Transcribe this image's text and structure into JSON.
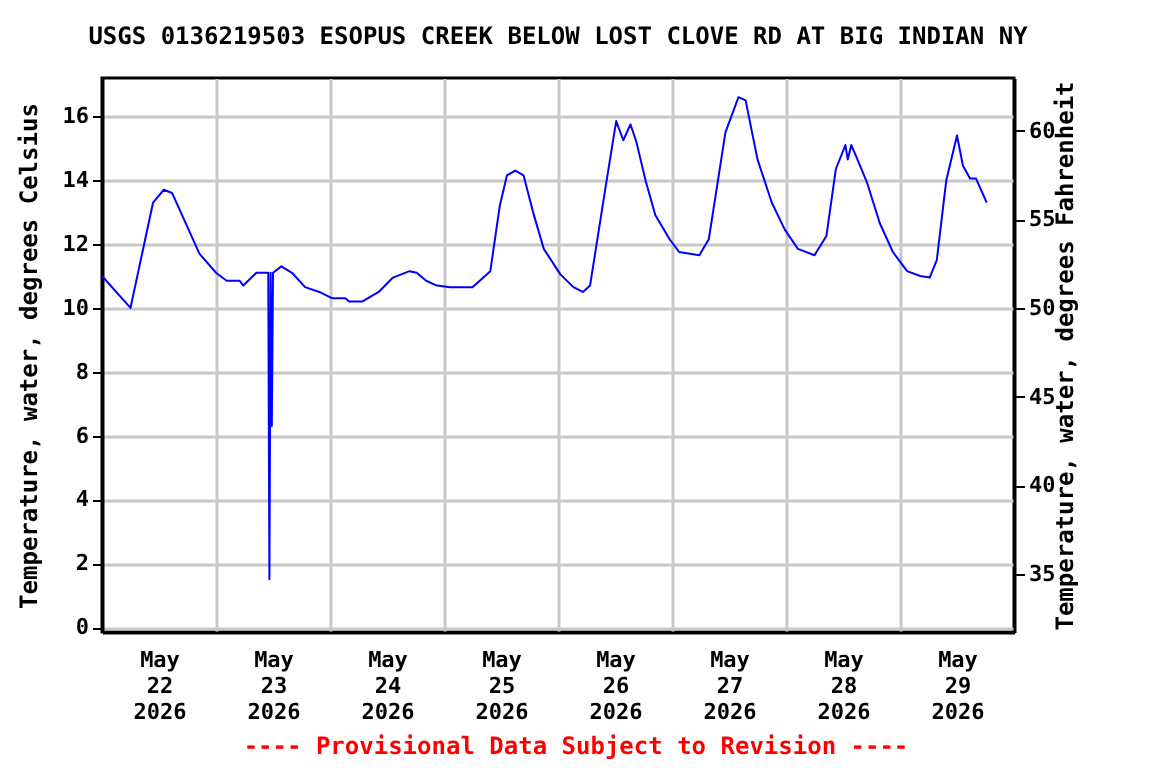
{
  "chart_data": {
    "type": "line",
    "title": "USGS 0136219503 ESOPUS CREEK BELOW LOST CLOVE RD AT BIG INDIAN NY",
    "ylabel": "Temperature, water, degrees Celsius",
    "y2label": "Temperature, water, degrees Fahrenheit",
    "annotations": [
      "---- Provisional Data Subject to Revision ----"
    ],
    "xlim": [
      "2026-05-22T00:00",
      "2026-05-30T00:00"
    ],
    "xticks": [
      {
        "value": "2026-05-22T12:00",
        "label": "May 22 2026"
      },
      {
        "value": "2026-05-23T00:00",
        "label": null
      },
      {
        "value": "2026-05-23T12:00",
        "label": "May 23 2026"
      },
      {
        "value": "2026-05-24T00:00",
        "label": null
      },
      {
        "value": "2026-05-24T12:00",
        "label": "May 24 2026"
      },
      {
        "value": "2026-05-25T00:00",
        "label": null
      },
      {
        "value": "2026-05-25T12:00",
        "label": "May 25 2026"
      },
      {
        "value": "2026-05-26T00:00",
        "label": null
      },
      {
        "value": "2026-05-26T12:00",
        "label": "May 26 2026"
      },
      {
        "value": "2026-05-27T00:00",
        "label": null
      },
      {
        "value": "2026-05-27T12:00",
        "label": "May 27 2026"
      },
      {
        "value": "2026-05-28T00:00",
        "label": null
      },
      {
        "value": "2026-05-28T12:00",
        "label": "May 28 2026"
      },
      {
        "value": "2026-05-29T00:00",
        "label": null
      },
      {
        "value": "2026-05-29T12:00",
        "label": "May 29 2026"
      }
    ],
    "ylim": [
      -0.15,
      17.2
    ],
    "yticks": [
      0,
      2,
      4,
      6,
      8,
      10,
      12,
      14,
      16
    ],
    "y2lim": [
      31.73,
      62.96
    ],
    "y2ticks": [
      35,
      40,
      45,
      50,
      55,
      60
    ],
    "grid": true,
    "series": [
      {
        "color": "#0000ff",
        "x": [
          "2026-05-22T00:00",
          "2026-05-22T06:00",
          "2026-05-22T10:45",
          "2026-05-22T13:00",
          "2026-05-22T14:45",
          "2026-05-22T20:30",
          "2026-05-23T00:00",
          "2026-05-23T02:15",
          "2026-05-23T05:00",
          "2026-05-23T05:45",
          "2026-05-23T08:30",
          "2026-05-23T11:00",
          "2026-05-23T11:15",
          "2026-05-23T11:30",
          "2026-05-23T11:45",
          "2026-05-23T12:00",
          "2026-05-23T13:45",
          "2026-05-23T16:00",
          "2026-05-23T18:45",
          "2026-05-23T21:45",
          "2026-05-24T00:30",
          "2026-05-24T03:15",
          "2026-05-24T04:00",
          "2026-05-24T06:45",
          "2026-05-24T10:15",
          "2026-05-24T13:15",
          "2026-05-24T16:45",
          "2026-05-24T18:15",
          "2026-05-24T20:15",
          "2026-05-24T22:30",
          "2026-05-25T01:15",
          "2026-05-25T06:00",
          "2026-05-25T09:45",
          "2026-05-25T11:45",
          "2026-05-25T13:15",
          "2026-05-25T15:00",
          "2026-05-25T16:45",
          "2026-05-25T18:45",
          "2026-05-25T21:00",
          "2026-05-26T00:30",
          "2026-05-26T03:15",
          "2026-05-26T05:15",
          "2026-05-26T06:45",
          "2026-05-26T10:15",
          "2026-05-26T12:15",
          "2026-05-26T13:45",
          "2026-05-26T15:15",
          "2026-05-26T16:30",
          "2026-05-26T18:30",
          "2026-05-26T20:30",
          "2026-05-26T23:30",
          "2026-05-27T01:30",
          "2026-05-27T05:45",
          "2026-05-27T07:45",
          "2026-05-27T11:15",
          "2026-05-27T14:00",
          "2026-05-27T15:30",
          "2026-05-27T18:00",
          "2026-05-27T21:00",
          "2026-05-27T23:45",
          "2026-05-28T02:30",
          "2026-05-28T06:00",
          "2026-05-28T08:30",
          "2026-05-28T10:30",
          "2026-05-28T12:30",
          "2026-05-28T13:00",
          "2026-05-28T13:45",
          "2026-05-28T14:45",
          "2026-05-28T17:00",
          "2026-05-28T19:45",
          "2026-05-28T22:30",
          "2026-05-29T01:30",
          "2026-05-29T04:15",
          "2026-05-29T06:15",
          "2026-05-29T07:45",
          "2026-05-29T09:45",
          "2026-05-29T12:00",
          "2026-05-29T13:15",
          "2026-05-29T14:45",
          "2026-05-29T16:00",
          "2026-05-29T18:15"
        ],
        "values": [
          11.0,
          10.0,
          13.3,
          13.7,
          13.6,
          11.7,
          11.1,
          10.85,
          10.85,
          10.7,
          11.1,
          11.1,
          1.5,
          11.1,
          6.3,
          11.1,
          11.3,
          11.1,
          10.65,
          10.5,
          10.3,
          10.3,
          10.2,
          10.2,
          10.5,
          10.95,
          11.15,
          11.1,
          10.85,
          10.7,
          10.65,
          10.65,
          11.15,
          13.2,
          14.15,
          14.3,
          14.15,
          13.0,
          11.85,
          11.05,
          10.65,
          10.5,
          10.7,
          14.0,
          15.85,
          15.25,
          15.75,
          15.2,
          13.95,
          12.9,
          12.15,
          11.75,
          11.65,
          12.15,
          15.5,
          16.6,
          16.5,
          14.65,
          13.3,
          12.45,
          11.85,
          11.65,
          12.25,
          14.35,
          15.1,
          14.65,
          15.1,
          14.75,
          13.95,
          12.65,
          11.75,
          11.15,
          11.0,
          10.95,
          11.5,
          14.0,
          15.4,
          14.45,
          14.05,
          14.05,
          13.3
        ]
      }
    ]
  }
}
